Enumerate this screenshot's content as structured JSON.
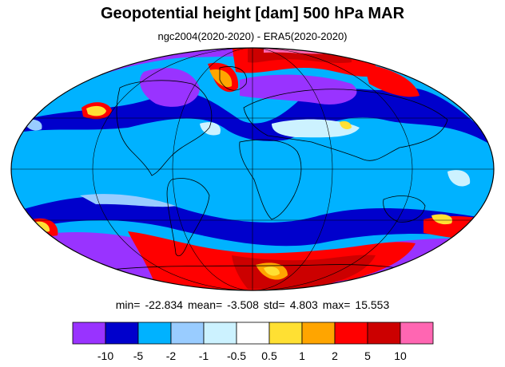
{
  "title": "Geopotential height [dam] 500 hPa MAR",
  "subtitle": "ngc2004(2020-2020) - ERA5(2020-2020)",
  "stats": {
    "min_label": "min=",
    "min": "-22.834",
    "mean_label": "mean=",
    "mean": "-3.508",
    "std_label": "std=",
    "std": "4.803",
    "max_label": "max=",
    "max": "15.553"
  },
  "colorbar": {
    "colors": [
      "#9933ff",
      "#0000cc",
      "#00b2ff",
      "#99ccff",
      "#ccf2ff",
      "#ffffff",
      "#ffe033",
      "#ffa500",
      "#ff0000",
      "#cc0000",
      "#ff66b2"
    ],
    "labels": [
      "-10",
      "-5",
      "-2",
      "-1",
      "-0.5",
      "0.5",
      "1",
      "2",
      "5",
      "10"
    ]
  },
  "map": {
    "projection": "mollweide",
    "background_color": "#00b2ff"
  }
}
